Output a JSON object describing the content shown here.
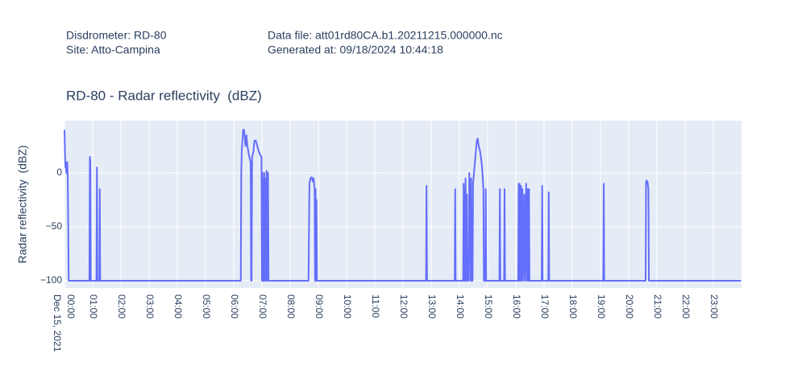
{
  "header": {
    "left": [
      "Disdrometer: RD-80",
      "Site: Atto-Campina"
    ],
    "right": [
      "Data file: att01rd80CA.b1.20211215.000000.nc",
      "Generated at: 09/18/2024 10:44:18"
    ]
  },
  "chart_data": {
    "type": "line",
    "title": "RD-80 - Radar reflectivity  (dBZ)",
    "y_label": "Radar reflectivity  (dBZ)",
    "color": "#636efa",
    "grid": true,
    "x_date_label": "Dec 15, 2021",
    "xlim": [
      "2021-12-15 00:00",
      "2021-12-16 00:00"
    ],
    "ylim": [
      -106.7,
      48.5
    ],
    "yticks": [
      0,
      {
        "value": -50,
        "label": "−50"
      },
      {
        "value": -100,
        "label": "−100"
      }
    ],
    "xticks": [
      {
        "value": "2021-12-15 00:00",
        "label": "00:00"
      },
      {
        "value": "2021-12-15 01:00",
        "label": "01:00"
      },
      {
        "value": "2021-12-15 02:00",
        "label": "02:00"
      },
      {
        "value": "2021-12-15 03:00",
        "label": "03:00"
      },
      {
        "value": "2021-12-15 04:00",
        "label": "04:00"
      },
      {
        "value": "2021-12-15 05:00",
        "label": "05:00"
      },
      {
        "value": "2021-12-15 06:00",
        "label": "06:00"
      },
      {
        "value": "2021-12-15 07:00",
        "label": "07:00"
      },
      {
        "value": "2021-12-15 08:00",
        "label": "08:00"
      },
      {
        "value": "2021-12-15 09:00",
        "label": "09:00"
      },
      {
        "value": "2021-12-15 10:00",
        "label": "10:00"
      },
      {
        "value": "2021-12-15 11:00",
        "label": "11:00"
      },
      {
        "value": "2021-12-15 12:00",
        "label": "12:00"
      },
      {
        "value": "2021-12-15 13:00",
        "label": "13:00"
      },
      {
        "value": "2021-12-15 14:00",
        "label": "14:00"
      },
      {
        "value": "2021-12-15 15:00",
        "label": "15:00"
      },
      {
        "value": "2021-12-15 16:00",
        "label": "16:00"
      },
      {
        "value": "2021-12-15 17:00",
        "label": "17:00"
      },
      {
        "value": "2021-12-15 18:00",
        "label": "18:00"
      },
      {
        "value": "2021-12-15 19:00",
        "label": "19:00"
      },
      {
        "value": "2021-12-15 20:00",
        "label": "20:00"
      },
      {
        "value": "2021-12-15 21:00",
        "label": "21:00"
      },
      {
        "value": "2021-12-15 22:00",
        "label": "22:00"
      },
      {
        "value": "2021-12-15 23:00",
        "label": "23:00"
      }
    ],
    "x": [
      "2021-12-15 00:00",
      "2021-12-15 00:01",
      "2021-12-15 00:02",
      "2021-12-15 00:03",
      "2021-12-15 00:04",
      "2021-12-15 00:05",
      "2021-12-15 00:06",
      "2021-12-15 00:07",
      "2021-12-15 00:08",
      "2021-12-15 00:09",
      "2021-12-15 00:53",
      "2021-12-15 00:54",
      "2021-12-15 00:55",
      "2021-12-15 00:56",
      "2021-12-15 01:08",
      "2021-12-15 01:09",
      "2021-12-15 01:10",
      "2021-12-15 01:14",
      "2021-12-15 01:15",
      "2021-12-15 01:16",
      "2021-12-15 06:15",
      "2021-12-15 06:16",
      "2021-12-15 06:17",
      "2021-12-15 06:20",
      "2021-12-15 06:22",
      "2021-12-15 06:24",
      "2021-12-15 06:25",
      "2021-12-15 06:27",
      "2021-12-15 06:29",
      "2021-12-15 06:31",
      "2021-12-15 06:33",
      "2021-12-15 06:36",
      "2021-12-15 06:37",
      "2021-12-15 06:38",
      "2021-12-15 06:39",
      "2021-12-15 06:42",
      "2021-12-15 06:44",
      "2021-12-15 06:47",
      "2021-12-15 06:50",
      "2021-12-15 06:53",
      "2021-12-15 06:56",
      "2021-12-15 06:59",
      "2021-12-15 07:00",
      "2021-12-15 07:01",
      "2021-12-15 07:02",
      "2021-12-15 07:03",
      "2021-12-15 07:04",
      "2021-12-15 07:05",
      "2021-12-15 07:06",
      "2021-12-15 07:07",
      "2021-12-15 07:08",
      "2021-12-15 07:10",
      "2021-12-15 07:11",
      "2021-12-15 07:13",
      "2021-12-15 07:14",
      "2021-12-15 08:39",
      "2021-12-15 08:41",
      "2021-12-15 08:43",
      "2021-12-15 08:46",
      "2021-12-15 08:48",
      "2021-12-15 08:50",
      "2021-12-15 08:52",
      "2021-12-15 08:53",
      "2021-12-15 08:54",
      "2021-12-15 08:55",
      "2021-12-15 08:56",
      "2021-12-15 08:57",
      "2021-12-15 12:49",
      "2021-12-15 12:50",
      "2021-12-15 12:51",
      "2021-12-15 13:50",
      "2021-12-15 13:51",
      "2021-12-15 13:52",
      "2021-12-15 14:08",
      "2021-12-15 14:09",
      "2021-12-15 14:10",
      "2021-12-15 14:11",
      "2021-12-15 14:12",
      "2021-12-15 14:13",
      "2021-12-15 14:14",
      "2021-12-15 14:16",
      "2021-12-15 14:17",
      "2021-12-15 14:20",
      "2021-12-15 14:21",
      "2021-12-15 14:23",
      "2021-12-15 14:24",
      "2021-12-15 14:25",
      "2021-12-15 14:26",
      "2021-12-15 14:28",
      "2021-12-15 14:29",
      "2021-12-15 14:32",
      "2021-12-15 14:35",
      "2021-12-15 14:37",
      "2021-12-15 14:39",
      "2021-12-15 14:41",
      "2021-12-15 14:44",
      "2021-12-15 14:47",
      "2021-12-15 14:49",
      "2021-12-15 14:51",
      "2021-12-15 14:52",
      "2021-12-15 14:55",
      "2021-12-15 14:56",
      "2021-12-15 14:57",
      "2021-12-15 15:25",
      "2021-12-15 15:26",
      "2021-12-15 15:27",
      "2021-12-15 15:35",
      "2021-12-15 15:36",
      "2021-12-15 15:37",
      "2021-12-15 16:05",
      "2021-12-15 16:06",
      "2021-12-15 16:07",
      "2021-12-15 16:08",
      "2021-12-15 16:09",
      "2021-12-15 16:11",
      "2021-12-15 16:12",
      "2021-12-15 16:14",
      "2021-12-15 16:15",
      "2021-12-15 16:18",
      "2021-12-15 16:19",
      "2021-12-15 16:22",
      "2021-12-15 16:23",
      "2021-12-15 16:25",
      "2021-12-15 16:26",
      "2021-12-15 16:28",
      "2021-12-15 16:29",
      "2021-12-15 16:55",
      "2021-12-15 16:56",
      "2021-12-15 16:57",
      "2021-12-15 17:09",
      "2021-12-15 17:10",
      "2021-12-15 17:11",
      "2021-12-15 19:06",
      "2021-12-15 19:07",
      "2021-12-15 19:08",
      "2021-12-15 20:36",
      "2021-12-15 20:37",
      "2021-12-15 20:38",
      "2021-12-15 20:40",
      "2021-12-15 20:42",
      "2021-12-15 20:43",
      "2021-12-15 23:59"
    ],
    "values": [
      40,
      20,
      5,
      10,
      0,
      8,
      10,
      -5,
      -50,
      -100,
      -100,
      15,
      10,
      -100,
      -100,
      5,
      -100,
      -100,
      -15,
      -100,
      -100,
      0,
      20,
      40,
      40,
      30,
      25,
      35,
      25,
      20,
      15,
      10,
      -100,
      -100,
      15,
      20,
      30,
      30,
      25,
      20,
      17,
      15,
      -100,
      0,
      -100,
      -5,
      -100,
      0,
      -100,
      -5,
      -100,
      2,
      -100,
      0,
      -100,
      -100,
      -10,
      -5,
      -4,
      -8,
      -5,
      -15,
      -100,
      -15,
      -100,
      -25,
      -100,
      -100,
      -12,
      -100,
      -100,
      -15,
      -100,
      -100,
      -10,
      -100,
      -15,
      -100,
      -5,
      -100,
      -20,
      -100,
      -100,
      0,
      -20,
      -100,
      -5,
      -100,
      -100,
      -10,
      5,
      20,
      30,
      32,
      25,
      20,
      10,
      0,
      -15,
      -100,
      -100,
      -15,
      -100,
      -100,
      -15,
      -100,
      -100,
      -15,
      -100,
      -100,
      -10,
      -100,
      -10,
      -100,
      -12,
      -100,
      -15,
      -100,
      -20,
      -100,
      -10,
      -100,
      -15,
      -100,
      -15,
      -100,
      -100,
      -12,
      -100,
      -100,
      -18,
      -100,
      -100,
      -10,
      -100,
      -100,
      -8,
      -7,
      -8,
      -15,
      -100,
      -100
    ]
  }
}
